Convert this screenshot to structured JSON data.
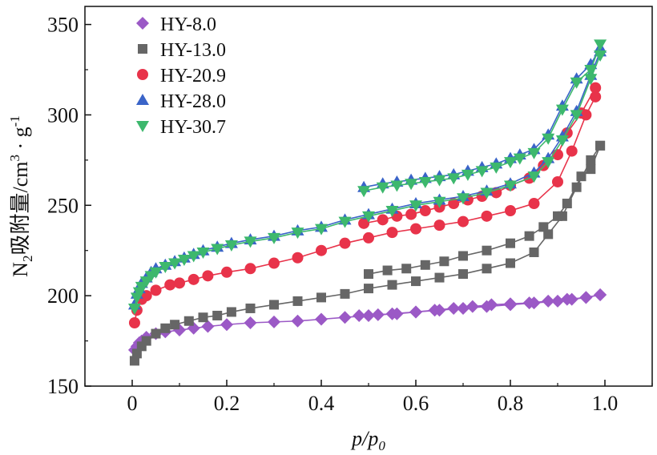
{
  "chart_data": {
    "type": "line",
    "title": "",
    "xlabel": {
      "main": "p/p",
      "sub": "0"
    },
    "ylabel": {
      "n": "N",
      "n_sub": "2",
      "text": "吸附量/cm",
      "sup3": "3",
      "dot": " · g",
      "sup_neg1": "-1"
    },
    "xlim": [
      -0.1,
      1.1
    ],
    "ylim": [
      150,
      360
    ],
    "xticks": [
      {
        "value": 0,
        "label": "0"
      },
      {
        "value": 0.2,
        "label": "0.2"
      },
      {
        "value": 0.4,
        "label": "0.4"
      },
      {
        "value": 0.6,
        "label": "0.6"
      },
      {
        "value": 0.8,
        "label": "0.8"
      },
      {
        "value": 1.0,
        "label": "1.0"
      }
    ],
    "yticks": [
      {
        "value": 150,
        "label": "150"
      },
      {
        "value": 200,
        "label": "200"
      },
      {
        "value": 250,
        "label": "250"
      },
      {
        "value": 300,
        "label": "300"
      },
      {
        "value": 350,
        "label": "350"
      }
    ],
    "legend_position": "top-left",
    "series": [
      {
        "name": "HY-8.0",
        "color": "#9b59c6",
        "marker": "diamond",
        "adsorption": {
          "x": [
            0.005,
            0.01,
            0.015,
            0.02,
            0.03,
            0.05,
            0.07,
            0.1,
            0.13,
            0.16,
            0.2,
            0.25,
            0.3,
            0.35,
            0.4,
            0.45,
            0.5,
            0.55,
            0.6,
            0.65,
            0.7,
            0.75,
            0.8,
            0.85,
            0.9,
            0.93,
            0.96,
            0.99
          ],
          "y": [
            170,
            172,
            174,
            175,
            177,
            179,
            180,
            181,
            182,
            183,
            184,
            185,
            185.5,
            186,
            187,
            188,
            189,
            190,
            191,
            192,
            193,
            194,
            195,
            196,
            197,
            198,
            199,
            200.5
          ]
        },
        "desorption": {
          "x": [
            0.99,
            0.96,
            0.92,
            0.88,
            0.84,
            0.8,
            0.76,
            0.72,
            0.68,
            0.64,
            0.6,
            0.56,
            0.52,
            0.48
          ],
          "y": [
            200.5,
            199,
            198,
            197,
            196,
            195.5,
            195,
            194,
            193,
            192,
            191,
            190,
            189.5,
            189
          ]
        }
      },
      {
        "name": "HY-13.0",
        "color": "#666666",
        "marker": "square",
        "adsorption": {
          "x": [
            0.005,
            0.01,
            0.02,
            0.03,
            0.05,
            0.07,
            0.09,
            0.12,
            0.15,
            0.18,
            0.21,
            0.25,
            0.3,
            0.35,
            0.4,
            0.45,
            0.5,
            0.55,
            0.6,
            0.65,
            0.7,
            0.75,
            0.8,
            0.85,
            0.88,
            0.91,
            0.94,
            0.97,
            0.99
          ],
          "y": [
            164,
            168,
            172,
            175,
            179,
            182,
            184,
            186,
            188,
            189,
            191,
            193,
            195,
            197,
            199,
            201,
            204,
            206,
            208,
            210,
            212,
            215,
            218,
            224,
            234,
            244,
            260,
            275,
            283
          ]
        },
        "desorption": {
          "x": [
            0.99,
            0.97,
            0.95,
            0.92,
            0.9,
            0.87,
            0.84,
            0.8,
            0.75,
            0.7,
            0.66,
            0.62,
            0.58,
            0.54,
            0.5
          ],
          "y": [
            283,
            270,
            266,
            251,
            244,
            238,
            233,
            229,
            225,
            222,
            219,
            217,
            215,
            214,
            212
          ]
        }
      },
      {
        "name": "HY-20.9",
        "color": "#e8334a",
        "marker": "circle",
        "adsorption": {
          "x": [
            0.005,
            0.01,
            0.02,
            0.03,
            0.05,
            0.08,
            0.1,
            0.13,
            0.16,
            0.2,
            0.25,
            0.3,
            0.35,
            0.4,
            0.45,
            0.5,
            0.55,
            0.6,
            0.65,
            0.7,
            0.75,
            0.8,
            0.85,
            0.9,
            0.93,
            0.96,
            0.98
          ],
          "y": [
            185,
            192,
            198,
            200,
            203,
            206,
            207,
            209,
            211,
            213,
            215,
            218,
            221,
            225,
            229,
            232,
            235,
            237,
            239,
            241,
            244,
            247,
            251,
            263,
            280,
            300,
            310
          ]
        },
        "desorption": {
          "x": [
            0.98,
            0.95,
            0.92,
            0.9,
            0.87,
            0.84,
            0.8,
            0.77,
            0.74,
            0.71,
            0.68,
            0.65,
            0.62,
            0.59,
            0.56,
            0.53,
            0.49
          ],
          "y": [
            315,
            301,
            290,
            278,
            272,
            265,
            261,
            257,
            255,
            253,
            251,
            249,
            247,
            245,
            244,
            242,
            240
          ]
        }
      },
      {
        "name": "HY-28.0",
        "color": "#3a64c8",
        "marker": "triangle-up",
        "adsorption": {
          "x": [
            0.005,
            0.01,
            0.015,
            0.02,
            0.03,
            0.04,
            0.05,
            0.07,
            0.09,
            0.11,
            0.13,
            0.15,
            0.18,
            0.21,
            0.25,
            0.3,
            0.35,
            0.4,
            0.45,
            0.5,
            0.55,
            0.6,
            0.65,
            0.7,
            0.75,
            0.8,
            0.85,
            0.88,
            0.91,
            0.94,
            0.97,
            0.99
          ],
          "y": [
            195,
            201,
            204,
            207,
            210,
            213,
            215,
            217,
            219,
            221,
            223,
            225,
            227,
            229,
            231,
            233,
            236,
            238,
            242,
            245,
            248,
            251,
            253,
            255,
            258,
            262,
            268,
            276,
            288,
            302,
            322,
            335
          ]
        },
        "desorption": {
          "x": [
            0.99,
            0.97,
            0.94,
            0.91,
            0.88,
            0.85,
            0.82,
            0.8,
            0.77,
            0.74,
            0.71,
            0.68,
            0.65,
            0.62,
            0.59,
            0.56,
            0.53,
            0.49
          ],
          "y": [
            337,
            328,
            320,
            305,
            289,
            281,
            278,
            276,
            273,
            271,
            269,
            267,
            266,
            265,
            264,
            263,
            262,
            260
          ]
        }
      },
      {
        "name": "HY-30.7",
        "color": "#3db86d",
        "marker": "triangle-down",
        "adsorption": {
          "x": [
            0.005,
            0.01,
            0.015,
            0.02,
            0.03,
            0.04,
            0.05,
            0.07,
            0.09,
            0.11,
            0.13,
            0.15,
            0.18,
            0.21,
            0.25,
            0.3,
            0.35,
            0.4,
            0.45,
            0.5,
            0.55,
            0.6,
            0.65,
            0.7,
            0.75,
            0.8,
            0.85,
            0.88,
            0.91,
            0.94,
            0.97,
            0.99
          ],
          "y": [
            193,
            199,
            202,
            205,
            208,
            211,
            213,
            216,
            218,
            220,
            222,
            224,
            226,
            228,
            230,
            232,
            235,
            237,
            241,
            244,
            247,
            250,
            252,
            254,
            257,
            261,
            266,
            274,
            286,
            300,
            320,
            333
          ]
        },
        "desorption": {
          "x": [
            0.99,
            0.97,
            0.94,
            0.91,
            0.88,
            0.85,
            0.82,
            0.8,
            0.77,
            0.74,
            0.71,
            0.68,
            0.65,
            0.62,
            0.59,
            0.56,
            0.53,
            0.49
          ],
          "y": [
            339,
            325,
            318,
            303,
            287,
            279,
            276,
            274,
            271,
            269,
            267,
            265,
            264,
            263,
            262,
            261,
            260,
            258
          ]
        }
      }
    ]
  }
}
